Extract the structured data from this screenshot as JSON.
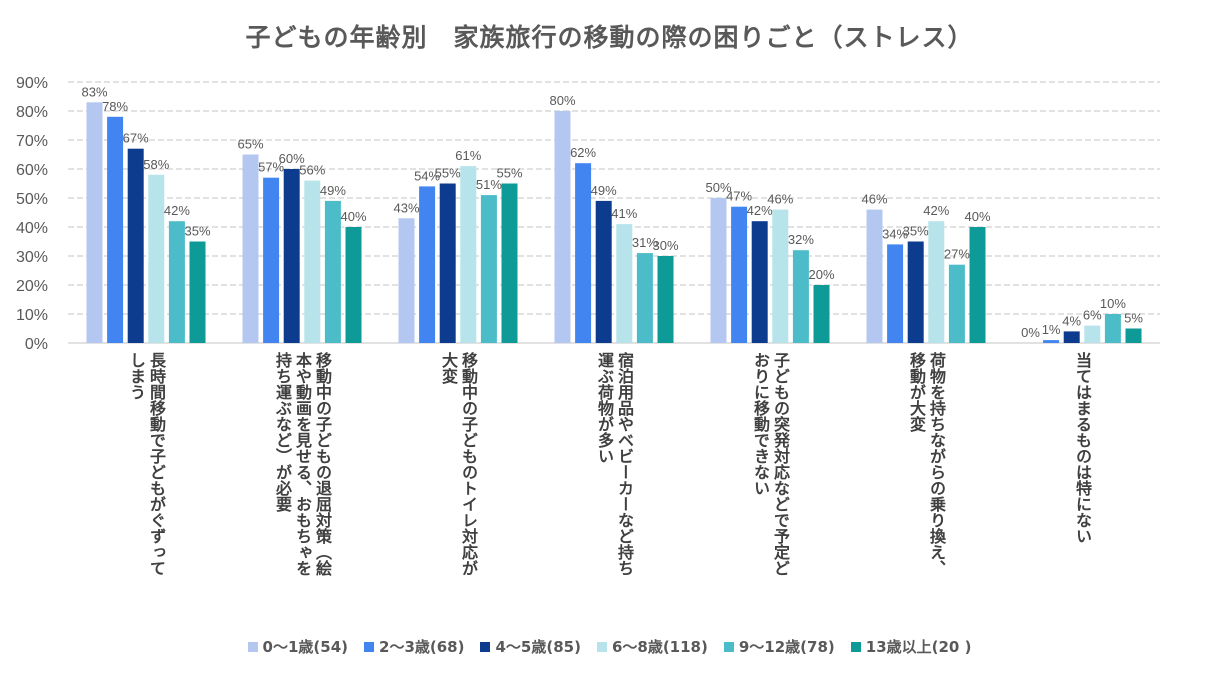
{
  "chart_data": {
    "type": "bar",
    "title": "子どもの年齢別　家族旅行の移動の際の困りごと（ストレス）",
    "categories": [
      "長時間移動で子どもがぐずって\nしまう",
      "移動中の子どもの退屈対策（絵\n本や動画を見せる、おもちゃを\n持ち運ぶなど）が必要",
      "移動中の子どものトイレ対応が\n大変",
      "宿泊用品やベビーカーなど持ち\n運ぶ荷物が多い",
      "子どもの突発対応などで予定ど\nおりに移動できない",
      "荷物を持ちながらの乗り換え、\n移動が大変",
      "当てはまるものは特にない"
    ],
    "series": [
      {
        "name": "0～1歳(54)",
        "color": "#b4c7f0",
        "values": [
          83,
          65,
          43,
          80,
          50,
          46,
          0
        ]
      },
      {
        "name": "2～3歳(68)",
        "color": "#4285f0",
        "values": [
          78,
          57,
          54,
          62,
          47,
          34,
          1
        ]
      },
      {
        "name": "4～5歳(85)",
        "color": "#0d3b8e",
        "values": [
          67,
          60,
          55,
          49,
          42,
          35,
          4
        ]
      },
      {
        "name": "6～8歳(118)",
        "color": "#b7e4ea",
        "values": [
          58,
          56,
          61,
          41,
          46,
          42,
          6
        ]
      },
      {
        "name": "9～12歳(78)",
        "color": "#4bbcc8",
        "values": [
          42,
          49,
          51,
          31,
          32,
          27,
          10
        ]
      },
      {
        "name": "13歳以上(20 )",
        "color": "#0e9a97",
        "values": [
          35,
          40,
          55,
          30,
          20,
          40,
          5
        ]
      }
    ],
    "ylim": [
      0,
      90
    ],
    "yticks": [
      "0%",
      "10%",
      "20%",
      "30%",
      "40%",
      "50%",
      "60%",
      "70%",
      "80%",
      "90%"
    ],
    "value_suffix": "%",
    "grid": true,
    "legend": "bottom"
  }
}
